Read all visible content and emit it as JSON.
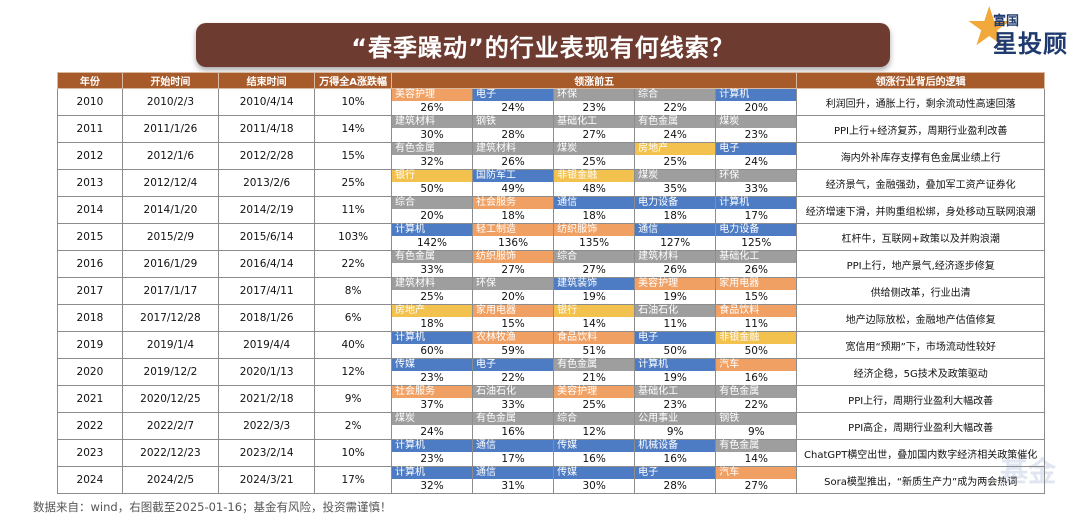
{
  "title": "“春季躁动”的行业表现有何线索？",
  "logo": {
    "line1": "富国",
    "line2": "星投顾"
  },
  "watermark": "基金",
  "headers": {
    "year": "年份",
    "start": "开始时间",
    "end": "结束时间",
    "market": "万得全A涨跌幅",
    "top5": "领涨前五",
    "logic": "领涨行业背后的逻辑"
  },
  "footer": "数据来自：wind，右图截至2025-01-16；基金有风险，投资需谨慎！",
  "colors": {
    "header": "#a75a2a",
    "title_bar": "#6e3b30",
    "consumer": "#f1a064",
    "tech": "#4e7cc4",
    "cyclical": "#9e9e9e",
    "finance": "#f2c14e"
  },
  "rows": [
    {
      "year": "2010",
      "start": "2010/2/3",
      "end": "2010/4/14",
      "market": "10%",
      "logic": "利润回升，通胀上行，剩余流动性高速回落",
      "leaders": [
        {
          "name": "美容护理",
          "pct": "26%",
          "color": "#f1a064"
        },
        {
          "name": "电子",
          "pct": "24%",
          "color": "#4e7cc4"
        },
        {
          "name": "环保",
          "pct": "23%",
          "color": "#9e9e9e"
        },
        {
          "name": "综合",
          "pct": "22%",
          "color": "#9e9e9e"
        },
        {
          "name": "计算机",
          "pct": "20%",
          "color": "#4e7cc4"
        }
      ]
    },
    {
      "year": "2011",
      "start": "2011/1/26",
      "end": "2011/4/18",
      "market": "14%",
      "logic": "PPI上行+经济复苏，周期行业盈利改善",
      "leaders": [
        {
          "name": "建筑材料",
          "pct": "30%",
          "color": "#9e9e9e"
        },
        {
          "name": "钢铁",
          "pct": "28%",
          "color": "#9e9e9e"
        },
        {
          "name": "基础化工",
          "pct": "27%",
          "color": "#9e9e9e"
        },
        {
          "name": "有色金属",
          "pct": "24%",
          "color": "#9e9e9e"
        },
        {
          "name": "煤炭",
          "pct": "23%",
          "color": "#9e9e9e"
        }
      ]
    },
    {
      "year": "2012",
      "start": "2012/1/6",
      "end": "2012/2/28",
      "market": "15%",
      "logic": "海内外补库存支撑有色金属业绩上行",
      "leaders": [
        {
          "name": "有色金属",
          "pct": "32%",
          "color": "#9e9e9e"
        },
        {
          "name": "建筑材料",
          "pct": "26%",
          "color": "#9e9e9e"
        },
        {
          "name": "煤炭",
          "pct": "25%",
          "color": "#9e9e9e"
        },
        {
          "name": "房地产",
          "pct": "25%",
          "color": "#f2c14e"
        },
        {
          "name": "电子",
          "pct": "24%",
          "color": "#4e7cc4"
        }
      ]
    },
    {
      "year": "2013",
      "start": "2012/12/4",
      "end": "2013/2/6",
      "market": "25%",
      "logic": "经济景气，金融强劲，叠加军工资产证券化",
      "leaders": [
        {
          "name": "银行",
          "pct": "50%",
          "color": "#f2c14e"
        },
        {
          "name": "国防军工",
          "pct": "49%",
          "color": "#4e7cc4"
        },
        {
          "name": "非银金融",
          "pct": "48%",
          "color": "#f2c14e"
        },
        {
          "name": "煤炭",
          "pct": "35%",
          "color": "#9e9e9e"
        },
        {
          "name": "环保",
          "pct": "33%",
          "color": "#9e9e9e"
        }
      ]
    },
    {
      "year": "2014",
      "start": "2014/1/20",
      "end": "2014/2/19",
      "market": "11%",
      "logic": "经济增速下滑，并购重组松绑，身处移动互联网浪潮",
      "leaders": [
        {
          "name": "综合",
          "pct": "20%",
          "color": "#9e9e9e"
        },
        {
          "name": "社会服务",
          "pct": "18%",
          "color": "#f1a064"
        },
        {
          "name": "通信",
          "pct": "18%",
          "color": "#4e7cc4"
        },
        {
          "name": "电力设备",
          "pct": "18%",
          "color": "#4e7cc4"
        },
        {
          "name": "计算机",
          "pct": "17%",
          "color": "#4e7cc4"
        }
      ]
    },
    {
      "year": "2015",
      "start": "2015/2/9",
      "end": "2015/6/14",
      "market": "103%",
      "logic": "杠杆牛，互联网+政策以及并购浪潮",
      "leaders": [
        {
          "name": "计算机",
          "pct": "142%",
          "color": "#4e7cc4"
        },
        {
          "name": "轻工制造",
          "pct": "136%",
          "color": "#f1a064"
        },
        {
          "name": "纺织服饰",
          "pct": "135%",
          "color": "#f1a064"
        },
        {
          "name": "通信",
          "pct": "127%",
          "color": "#4e7cc4"
        },
        {
          "name": "电力设备",
          "pct": "125%",
          "color": "#4e7cc4"
        }
      ]
    },
    {
      "year": "2016",
      "start": "2016/1/29",
      "end": "2016/4/14",
      "market": "22%",
      "logic": "PPI上行，地产景气,经济逐步修复",
      "leaders": [
        {
          "name": "有色金属",
          "pct": "33%",
          "color": "#9e9e9e"
        },
        {
          "name": "纺织服饰",
          "pct": "27%",
          "color": "#f1a064"
        },
        {
          "name": "综合",
          "pct": "27%",
          "color": "#9e9e9e"
        },
        {
          "name": "建筑材料",
          "pct": "26%",
          "color": "#9e9e9e"
        },
        {
          "name": "基础化工",
          "pct": "26%",
          "color": "#9e9e9e"
        }
      ]
    },
    {
      "year": "2017",
      "start": "2017/1/17",
      "end": "2017/4/11",
      "market": "8%",
      "logic": "供给侧改革，行业出清",
      "leaders": [
        {
          "name": "建筑材料",
          "pct": "25%",
          "color": "#9e9e9e"
        },
        {
          "name": "环保",
          "pct": "20%",
          "color": "#9e9e9e"
        },
        {
          "name": "建筑装饰",
          "pct": "19%",
          "color": "#4e7cc4"
        },
        {
          "name": "美容护理",
          "pct": "19%",
          "color": "#f1a064"
        },
        {
          "name": "家用电器",
          "pct": "15%",
          "color": "#f1a064"
        }
      ]
    },
    {
      "year": "2018",
      "start": "2017/12/28",
      "end": "2018/1/26",
      "market": "6%",
      "logic": "地产边际放松，金融地产估值修复",
      "leaders": [
        {
          "name": "房地产",
          "pct": "18%",
          "color": "#f2c14e"
        },
        {
          "name": "家用电器",
          "pct": "15%",
          "color": "#f1a064"
        },
        {
          "name": "银行",
          "pct": "14%",
          "color": "#f2c14e"
        },
        {
          "name": "石油石化",
          "pct": "11%",
          "color": "#9e9e9e"
        },
        {
          "name": "食品饮料",
          "pct": "11%",
          "color": "#f1a064"
        }
      ]
    },
    {
      "year": "2019",
      "start": "2019/1/4",
      "end": "2019/4/4",
      "market": "40%",
      "logic": "宽信用“预期”下，市场流动性较好",
      "leaders": [
        {
          "name": "计算机",
          "pct": "60%",
          "color": "#4e7cc4"
        },
        {
          "name": "农林牧渔",
          "pct": "59%",
          "color": "#f1a064"
        },
        {
          "name": "食品饮料",
          "pct": "51%",
          "color": "#f1a064"
        },
        {
          "name": "电子",
          "pct": "50%",
          "color": "#4e7cc4"
        },
        {
          "name": "非银金融",
          "pct": "50%",
          "color": "#f2c14e"
        }
      ]
    },
    {
      "year": "2020",
      "start": "2019/12/2",
      "end": "2020/1/13",
      "market": "12%",
      "logic": "经济企稳，5G技术及政策驱动",
      "leaders": [
        {
          "name": "传媒",
          "pct": "23%",
          "color": "#4e7cc4"
        },
        {
          "name": "电子",
          "pct": "22%",
          "color": "#4e7cc4"
        },
        {
          "name": "有色金属",
          "pct": "21%",
          "color": "#9e9e9e"
        },
        {
          "name": "计算机",
          "pct": "19%",
          "color": "#4e7cc4"
        },
        {
          "name": "汽车",
          "pct": "16%",
          "color": "#f1a064"
        }
      ]
    },
    {
      "year": "2021",
      "start": "2020/12/25",
      "end": "2021/2/18",
      "market": "9%",
      "logic": "PPI上行，周期行业盈利大幅改善",
      "leaders": [
        {
          "name": "社会服务",
          "pct": "37%",
          "color": "#f1a064"
        },
        {
          "name": "石油石化",
          "pct": "33%",
          "color": "#9e9e9e"
        },
        {
          "name": "美容护理",
          "pct": "25%",
          "color": "#f1a064"
        },
        {
          "name": "基础化工",
          "pct": "23%",
          "color": "#9e9e9e"
        },
        {
          "name": "有色金属",
          "pct": "22%",
          "color": "#9e9e9e"
        }
      ]
    },
    {
      "year": "2022",
      "start": "2022/2/7",
      "end": "2022/3/3",
      "market": "2%",
      "logic": "PPI高企，周期行业盈利大幅改善",
      "leaders": [
        {
          "name": "煤炭",
          "pct": "24%",
          "color": "#9e9e9e"
        },
        {
          "name": "有色金属",
          "pct": "16%",
          "color": "#9e9e9e"
        },
        {
          "name": "综合",
          "pct": "12%",
          "color": "#9e9e9e"
        },
        {
          "name": "公用事业",
          "pct": "9%",
          "color": "#9e9e9e"
        },
        {
          "name": "钢铁",
          "pct": "9%",
          "color": "#9e9e9e"
        }
      ]
    },
    {
      "year": "2023",
      "start": "2022/12/23",
      "end": "2023/2/14",
      "market": "10%",
      "logic": "ChatGPT横空出世，叠加国内数字经济相关政策催化",
      "leaders": [
        {
          "name": "计算机",
          "pct": "23%",
          "color": "#4e7cc4"
        },
        {
          "name": "通信",
          "pct": "17%",
          "color": "#4e7cc4"
        },
        {
          "name": "传媒",
          "pct": "16%",
          "color": "#4e7cc4"
        },
        {
          "name": "机械设备",
          "pct": "16%",
          "color": "#4e7cc4"
        },
        {
          "name": "有色金属",
          "pct": "14%",
          "color": "#9e9e9e"
        }
      ]
    },
    {
      "year": "2024",
      "start": "2024/2/5",
      "end": "2024/3/21",
      "market": "17%",
      "logic": "Sora模型推出，“新质生产力”成为两会热词",
      "leaders": [
        {
          "name": "计算机",
          "pct": "32%",
          "color": "#4e7cc4"
        },
        {
          "name": "通信",
          "pct": "31%",
          "color": "#4e7cc4"
        },
        {
          "name": "传媒",
          "pct": "30%",
          "color": "#4e7cc4"
        },
        {
          "name": "电子",
          "pct": "28%",
          "color": "#4e7cc4"
        },
        {
          "name": "汽车",
          "pct": "27%",
          "color": "#f1a064"
        }
      ]
    }
  ]
}
